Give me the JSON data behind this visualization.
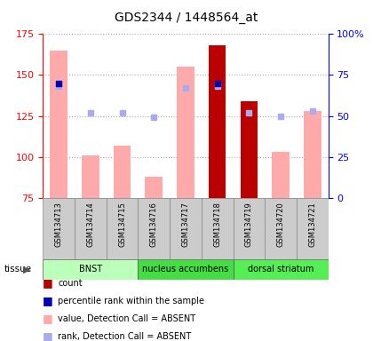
{
  "title": "GDS2344 / 1448564_at",
  "samples": [
    "GSM134713",
    "GSM134714",
    "GSM134715",
    "GSM134716",
    "GSM134717",
    "GSM134718",
    "GSM134719",
    "GSM134720",
    "GSM134721"
  ],
  "pink_bar_heights": [
    165,
    101,
    107,
    88,
    155,
    168,
    134,
    103,
    128
  ],
  "dark_red_bars": {
    "GSM134718": 168,
    "GSM134719": 134
  },
  "blue_squares_present": {
    "GSM134713": 70,
    "GSM134718": 70
  },
  "light_blue_squares": {
    "GSM134713": 68,
    "GSM134714": 52,
    "GSM134715": 52,
    "GSM134716": 49,
    "GSM134717": 67,
    "GSM134718": 68,
    "GSM134719": 52,
    "GSM134720": 50,
    "GSM134721": 53
  },
  "ylim_left": [
    75,
    175
  ],
  "ylim_right": [
    0,
    100
  ],
  "yticks_left": [
    75,
    100,
    125,
    150,
    175
  ],
  "yticks_right": [
    0,
    25,
    50,
    75,
    100
  ],
  "ytick_labels_right": [
    "0",
    "25",
    "50",
    "75",
    "100%"
  ],
  "tissues": [
    {
      "label": "BNST",
      "samples": [
        "GSM134713",
        "GSM134714",
        "GSM134715"
      ],
      "color": "#bbffbb"
    },
    {
      "label": "nucleus accumbens",
      "samples": [
        "GSM134716",
        "GSM134717",
        "GSM134718"
      ],
      "color": "#44dd44"
    },
    {
      "label": "dorsal striatum",
      "samples": [
        "GSM134719",
        "GSM134720",
        "GSM134721"
      ],
      "color": "#55ee55"
    }
  ],
  "pink_color": "#ffaaaa",
  "dark_red_color": "#bb0000",
  "blue_color": "#0000bb",
  "light_blue_color": "#aaaaee",
  "grid_color": "#aaaaaa",
  "bg_color": "#ffffff",
  "sample_box_color": "#cccccc",
  "legend": [
    {
      "color": "#bb0000",
      "label": "count"
    },
    {
      "color": "#0000bb",
      "label": "percentile rank within the sample"
    },
    {
      "color": "#ffaaaa",
      "label": "value, Detection Call = ABSENT"
    },
    {
      "color": "#aaaaee",
      "label": "rank, Detection Call = ABSENT"
    }
  ]
}
